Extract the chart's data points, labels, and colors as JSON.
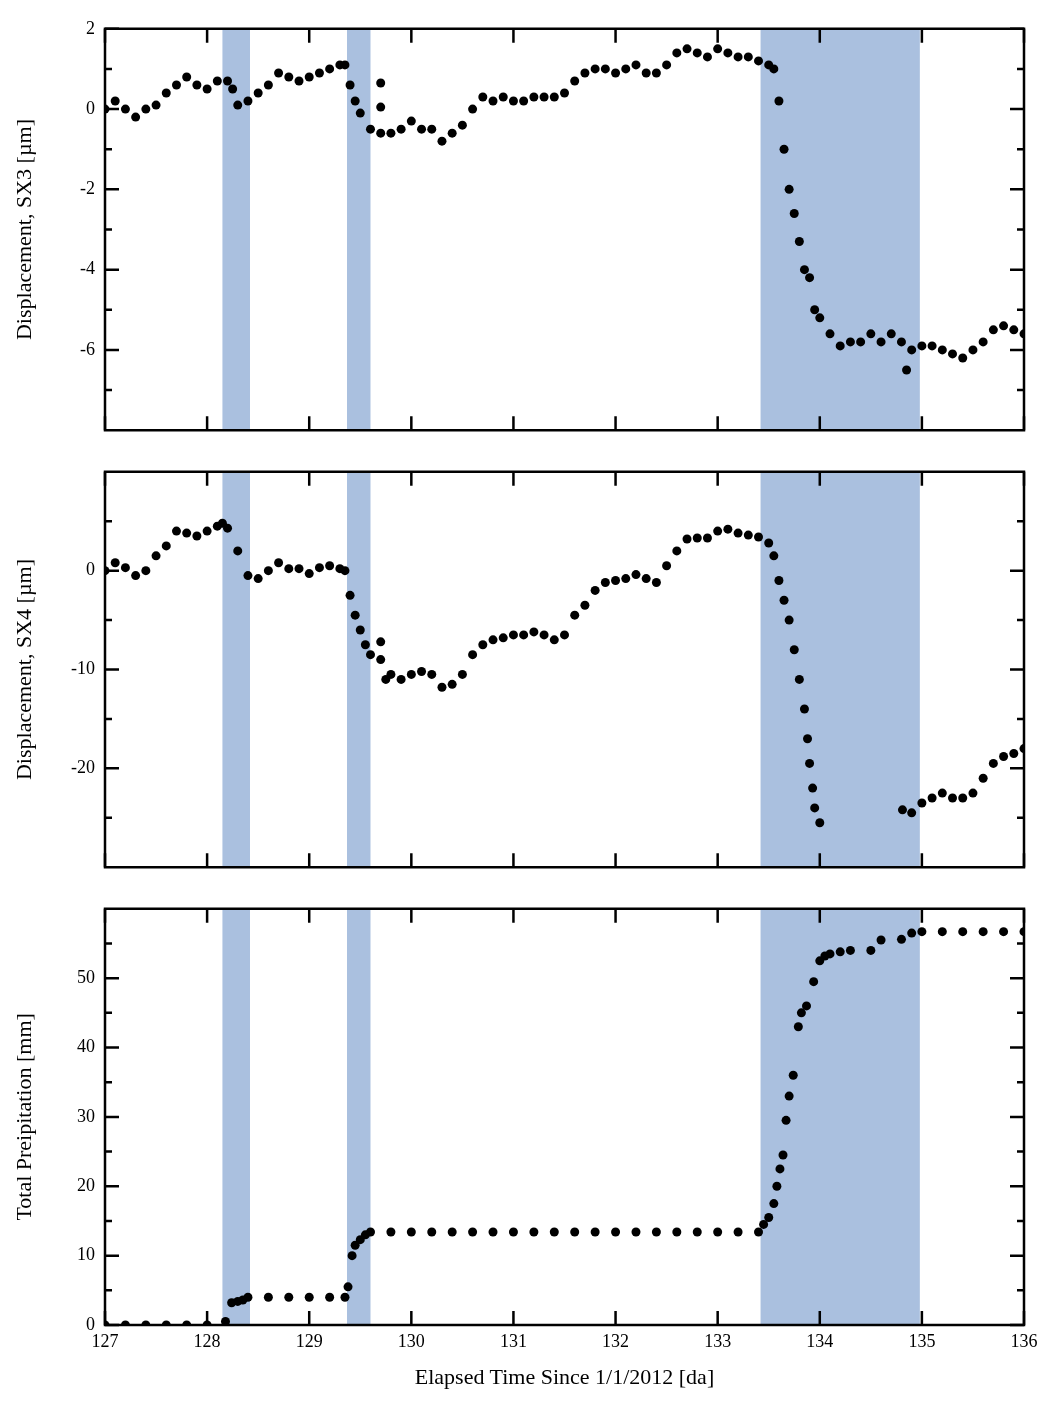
{
  "chart_data": [
    {
      "type": "scatter",
      "ylabel": "Displacement, SX3 [µm]",
      "xlim": [
        127,
        136
      ],
      "xticks": [
        127,
        128,
        129,
        130,
        131,
        132,
        133,
        134,
        135,
        136
      ],
      "ylim": [
        -8,
        2
      ],
      "yticks": [
        {
          "value": -7,
          "label": null
        },
        -6,
        {
          "value": -5,
          "label": null
        },
        -4,
        {
          "value": -3,
          "label": null
        },
        -2,
        {
          "value": -1,
          "label": null
        },
        0,
        {
          "value": 1,
          "label": null
        },
        2
      ],
      "tick_labels": "y",
      "grid": false,
      "legend": false,
      "marker": "circle",
      "bands": [
        {
          "axis": "x",
          "from": 128.15,
          "to": 128.42,
          "color": "#aac0df"
        },
        {
          "axis": "x",
          "from": 129.37,
          "to": 129.6,
          "color": "#aac0df"
        },
        {
          "axis": "x",
          "from": 133.42,
          "to": 134.98,
          "color": "#aac0df"
        }
      ],
      "series": [
        {
          "color": "#000000",
          "x": [
            127,
            127.1,
            127.2,
            127.3,
            127.4,
            127.5,
            127.6,
            127.7,
            127.8,
            127.9,
            128,
            128.1,
            128.2,
            128.25,
            128.3,
            128.4,
            128.5,
            128.6,
            128.7,
            128.8,
            128.9,
            129,
            129.1,
            129.2,
            129.3,
            129.35,
            129.4,
            129.45,
            129.5,
            129.6,
            129.7,
            129.7,
            129.7,
            129.8,
            129.9,
            130,
            130.1,
            130.2,
            130.3,
            130.4,
            130.5,
            130.6,
            130.7,
            130.8,
            130.9,
            131,
            131.1,
            131.2,
            131.3,
            131.4,
            131.5,
            131.6,
            131.7,
            131.8,
            131.9,
            132,
            132.1,
            132.2,
            132.3,
            132.4,
            132.5,
            132.6,
            132.7,
            132.8,
            132.9,
            133,
            133.1,
            133.2,
            133.3,
            133.4,
            133.5,
            133.55,
            133.6,
            133.65,
            133.7,
            133.75,
            133.8,
            133.85,
            133.9,
            133.95,
            134,
            134.1,
            134.2,
            134.3,
            134.4,
            134.5,
            134.6,
            134.7,
            134.8,
            134.85,
            134.9,
            135,
            135.1,
            135.2,
            135.3,
            135.4,
            135.5,
            135.6,
            135.7,
            135.8,
            135.9,
            136
          ],
          "values": [
            0,
            0.2,
            0,
            -0.2,
            0,
            0.1,
            0.4,
            0.6,
            0.8,
            0.6,
            0.5,
            0.7,
            0.7,
            0.5,
            0.1,
            0.2,
            0.4,
            0.6,
            0.9,
            0.8,
            0.7,
            0.8,
            0.9,
            1.0,
            1.1,
            1.1,
            0.6,
            0.2,
            -0.1,
            -0.5,
            0.65,
            0.05,
            -0.6,
            -0.6,
            -0.5,
            -0.3,
            -0.5,
            -0.5,
            -0.8,
            -0.6,
            -0.4,
            0,
            0.3,
            0.2,
            0.3,
            0.2,
            0.2,
            0.3,
            0.3,
            0.3,
            0.4,
            0.7,
            0.9,
            1.0,
            1.0,
            0.9,
            1.0,
            1.1,
            0.9,
            0.9,
            1.1,
            1.4,
            1.5,
            1.4,
            1.3,
            1.5,
            1.4,
            1.3,
            1.3,
            1.2,
            1.1,
            1.0,
            0.2,
            -1.0,
            -2.0,
            -2.6,
            -3.3,
            -4.0,
            -4.2,
            -5.0,
            -5.2,
            -5.6,
            -5.9,
            -5.8,
            -5.8,
            -5.6,
            -5.8,
            -5.6,
            -5.8,
            -6.5,
            -6.0,
            -5.9,
            -5.9,
            -6.0,
            -6.1,
            -6.2,
            -6.0,
            -5.8,
            -5.5,
            -5.4,
            -5.5,
            -5.6
          ]
        }
      ]
    },
    {
      "type": "scatter",
      "ylabel": "Displacement, SX4 [µm]",
      "xlim": [
        127,
        136
      ],
      "xticks": [
        127,
        128,
        129,
        130,
        131,
        132,
        133,
        134,
        135,
        136
      ],
      "ylim": [
        -30,
        10
      ],
      "yticks": [
        {
          "value": -25,
          "label": null
        },
        -20,
        {
          "value": -15,
          "label": null
        },
        -10,
        {
          "value": -5,
          "label": null
        },
        0,
        {
          "value": 5,
          "label": null
        }
      ],
      "tick_labels": "y",
      "grid": false,
      "legend": false,
      "marker": "circle",
      "bands": [
        {
          "axis": "x",
          "from": 128.15,
          "to": 128.42,
          "color": "#aac0df"
        },
        {
          "axis": "x",
          "from": 129.37,
          "to": 129.6,
          "color": "#aac0df"
        },
        {
          "axis": "x",
          "from": 133.42,
          "to": 134.98,
          "color": "#aac0df"
        }
      ],
      "series": [
        {
          "color": "#000000",
          "x": [
            127,
            127.1,
            127.2,
            127.3,
            127.4,
            127.5,
            127.6,
            127.7,
            127.8,
            127.9,
            128,
            128.1,
            128.15,
            128.2,
            128.3,
            128.4,
            128.5,
            128.6,
            128.7,
            128.8,
            128.9,
            129,
            129.1,
            129.2,
            129.3,
            129.35,
            129.4,
            129.45,
            129.5,
            129.55,
            129.6,
            129.7,
            129.7,
            129.75,
            129.8,
            129.9,
            130,
            130.1,
            130.2,
            130.3,
            130.4,
            130.5,
            130.6,
            130.7,
            130.8,
            130.9,
            131,
            131.1,
            131.2,
            131.3,
            131.4,
            131.5,
            131.6,
            131.7,
            131.8,
            131.9,
            132,
            132.1,
            132.2,
            132.3,
            132.4,
            132.5,
            132.6,
            132.7,
            132.8,
            132.9,
            133,
            133.1,
            133.2,
            133.3,
            133.4,
            133.5,
            133.55,
            133.6,
            133.65,
            133.7,
            133.75,
            133.8,
            133.85,
            133.88,
            133.9,
            133.93,
            133.95,
            134,
            134.81,
            134.9,
            135,
            135.1,
            135.2,
            135.3,
            135.4,
            135.5,
            135.6,
            135.7,
            135.8,
            135.9,
            136
          ],
          "values": [
            0,
            0.8,
            0.3,
            -0.5,
            0,
            1.5,
            2.5,
            4.0,
            3.8,
            3.5,
            4.0,
            4.5,
            4.8,
            4.3,
            2.0,
            -0.5,
            -0.8,
            0,
            0.8,
            0.2,
            0.2,
            -0.3,
            0.3,
            0.5,
            0.2,
            0,
            -2.5,
            -4.5,
            -6.0,
            -7.5,
            -8.5,
            -9.0,
            -7.2,
            -11,
            -10.5,
            -11,
            -10.5,
            -10.2,
            -10.5,
            -11.8,
            -11.5,
            -10.5,
            -8.5,
            -7.5,
            -7.0,
            -6.8,
            -6.5,
            -6.5,
            -6.2,
            -6.5,
            -7.0,
            -6.5,
            -4.5,
            -3.5,
            -2.0,
            -1.2,
            -1.0,
            -0.8,
            -0.4,
            -0.8,
            -1.2,
            0.5,
            2.0,
            3.2,
            3.3,
            3.3,
            4.0,
            4.2,
            3.8,
            3.6,
            3.4,
            2.8,
            1.5,
            -1.0,
            -3.0,
            -5.0,
            -8.0,
            -11,
            -14,
            -17,
            -19.5,
            -22,
            -24,
            -25.5,
            -24.2,
            -24.5,
            -23.5,
            -23,
            -22.5,
            -23,
            -23,
            -22.5,
            -21,
            -19.5,
            -18.8,
            -18.5,
            -18.0
          ]
        }
      ]
    },
    {
      "type": "scatter",
      "xlabel": "Elapsed Time Since 1/1/2012 [da]",
      "ylabel": "Total Preipitation [mm]",
      "xlim": [
        127,
        136
      ],
      "xticks": [
        127,
        128,
        129,
        130,
        131,
        132,
        133,
        134,
        135,
        136
      ],
      "ylim": [
        0,
        60
      ],
      "yticks": [
        0,
        {
          "value": 5,
          "label": null
        },
        10,
        {
          "value": 15,
          "label": null
        },
        20,
        {
          "value": 25,
          "label": null
        },
        30,
        {
          "value": 35,
          "label": null
        },
        40,
        {
          "value": 45,
          "label": null
        },
        50,
        {
          "value": 55,
          "label": null
        }
      ],
      "grid": false,
      "legend": false,
      "marker": "circle",
      "bands": [
        {
          "axis": "x",
          "from": 128.15,
          "to": 128.42,
          "color": "#aac0df"
        },
        {
          "axis": "x",
          "from": 129.37,
          "to": 129.6,
          "color": "#aac0df"
        },
        {
          "axis": "x",
          "from": 133.42,
          "to": 134.98,
          "color": "#aac0df"
        }
      ],
      "series": [
        {
          "color": "#000000",
          "x": [
            127,
            127.2,
            127.4,
            127.6,
            127.8,
            128,
            128.18,
            128.24,
            128.3,
            128.35,
            128.4,
            128.6,
            128.8,
            129,
            129.2,
            129.35,
            129.38,
            129.42,
            129.45,
            129.5,
            129.55,
            129.6,
            129.8,
            130,
            130.2,
            130.4,
            130.6,
            130.8,
            131,
            131.2,
            131.4,
            131.6,
            131.8,
            132,
            132.2,
            132.4,
            132.6,
            132.8,
            133,
            133.2,
            133.4,
            133.45,
            133.5,
            133.55,
            133.58,
            133.61,
            133.64,
            133.67,
            133.7,
            133.74,
            133.79,
            133.82,
            133.87,
            133.94,
            134,
            134.05,
            134.1,
            134.2,
            134.3,
            134.5,
            134.6,
            134.8,
            134.9,
            135,
            135.2,
            135.4,
            135.6,
            135.8,
            136
          ],
          "values": [
            0,
            0,
            0,
            0,
            0,
            0,
            0.5,
            3.2,
            3.4,
            3.6,
            4.0,
            4.0,
            4.0,
            4.0,
            4.0,
            4.0,
            5.5,
            10,
            11.5,
            12.3,
            13.0,
            13.4,
            13.4,
            13.4,
            13.4,
            13.4,
            13.4,
            13.4,
            13.4,
            13.4,
            13.4,
            13.4,
            13.4,
            13.4,
            13.4,
            13.4,
            13.4,
            13.4,
            13.4,
            13.4,
            13.4,
            14.5,
            15.5,
            17.5,
            20,
            22.5,
            24.5,
            29.5,
            33,
            36,
            43,
            45,
            46,
            49.5,
            52.5,
            53.2,
            53.5,
            53.8,
            54,
            54,
            55.5,
            55.6,
            56.5,
            56.7,
            56.7,
            56.7,
            56.7,
            56.7,
            56.7
          ]
        }
      ]
    }
  ]
}
